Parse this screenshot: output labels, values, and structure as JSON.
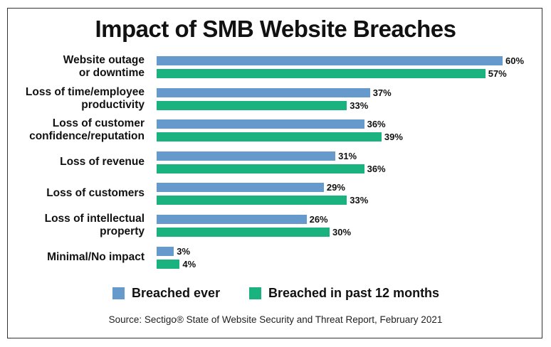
{
  "chart_data": {
    "type": "bar",
    "orientation": "horizontal",
    "title": "Impact of SMB Website Breaches",
    "categories": [
      [
        "Website outage",
        "or downtime"
      ],
      [
        "Loss of time/employee",
        "productivity"
      ],
      [
        "Loss of customer",
        "confidence/reputation"
      ],
      [
        "Loss of revenue"
      ],
      [
        "Loss of customers"
      ],
      [
        "Loss of intellectual",
        "property"
      ],
      [
        "Minimal/No impact"
      ]
    ],
    "series": [
      {
        "name": "Breached ever",
        "color": "#6699cc",
        "values": [
          60,
          37,
          36,
          31,
          29,
          26,
          3
        ]
      },
      {
        "name": "Breached in past 12 months",
        "color": "#1ab37f",
        "values": [
          57,
          33,
          39,
          36,
          33,
          30,
          4
        ]
      }
    ],
    "value_format": "%",
    "xlim": [
      0,
      60
    ],
    "grid": false,
    "legend_position": "bottom",
    "source": "Source: Sectigo® State of Website Security and Threat Report, February 2021"
  }
}
